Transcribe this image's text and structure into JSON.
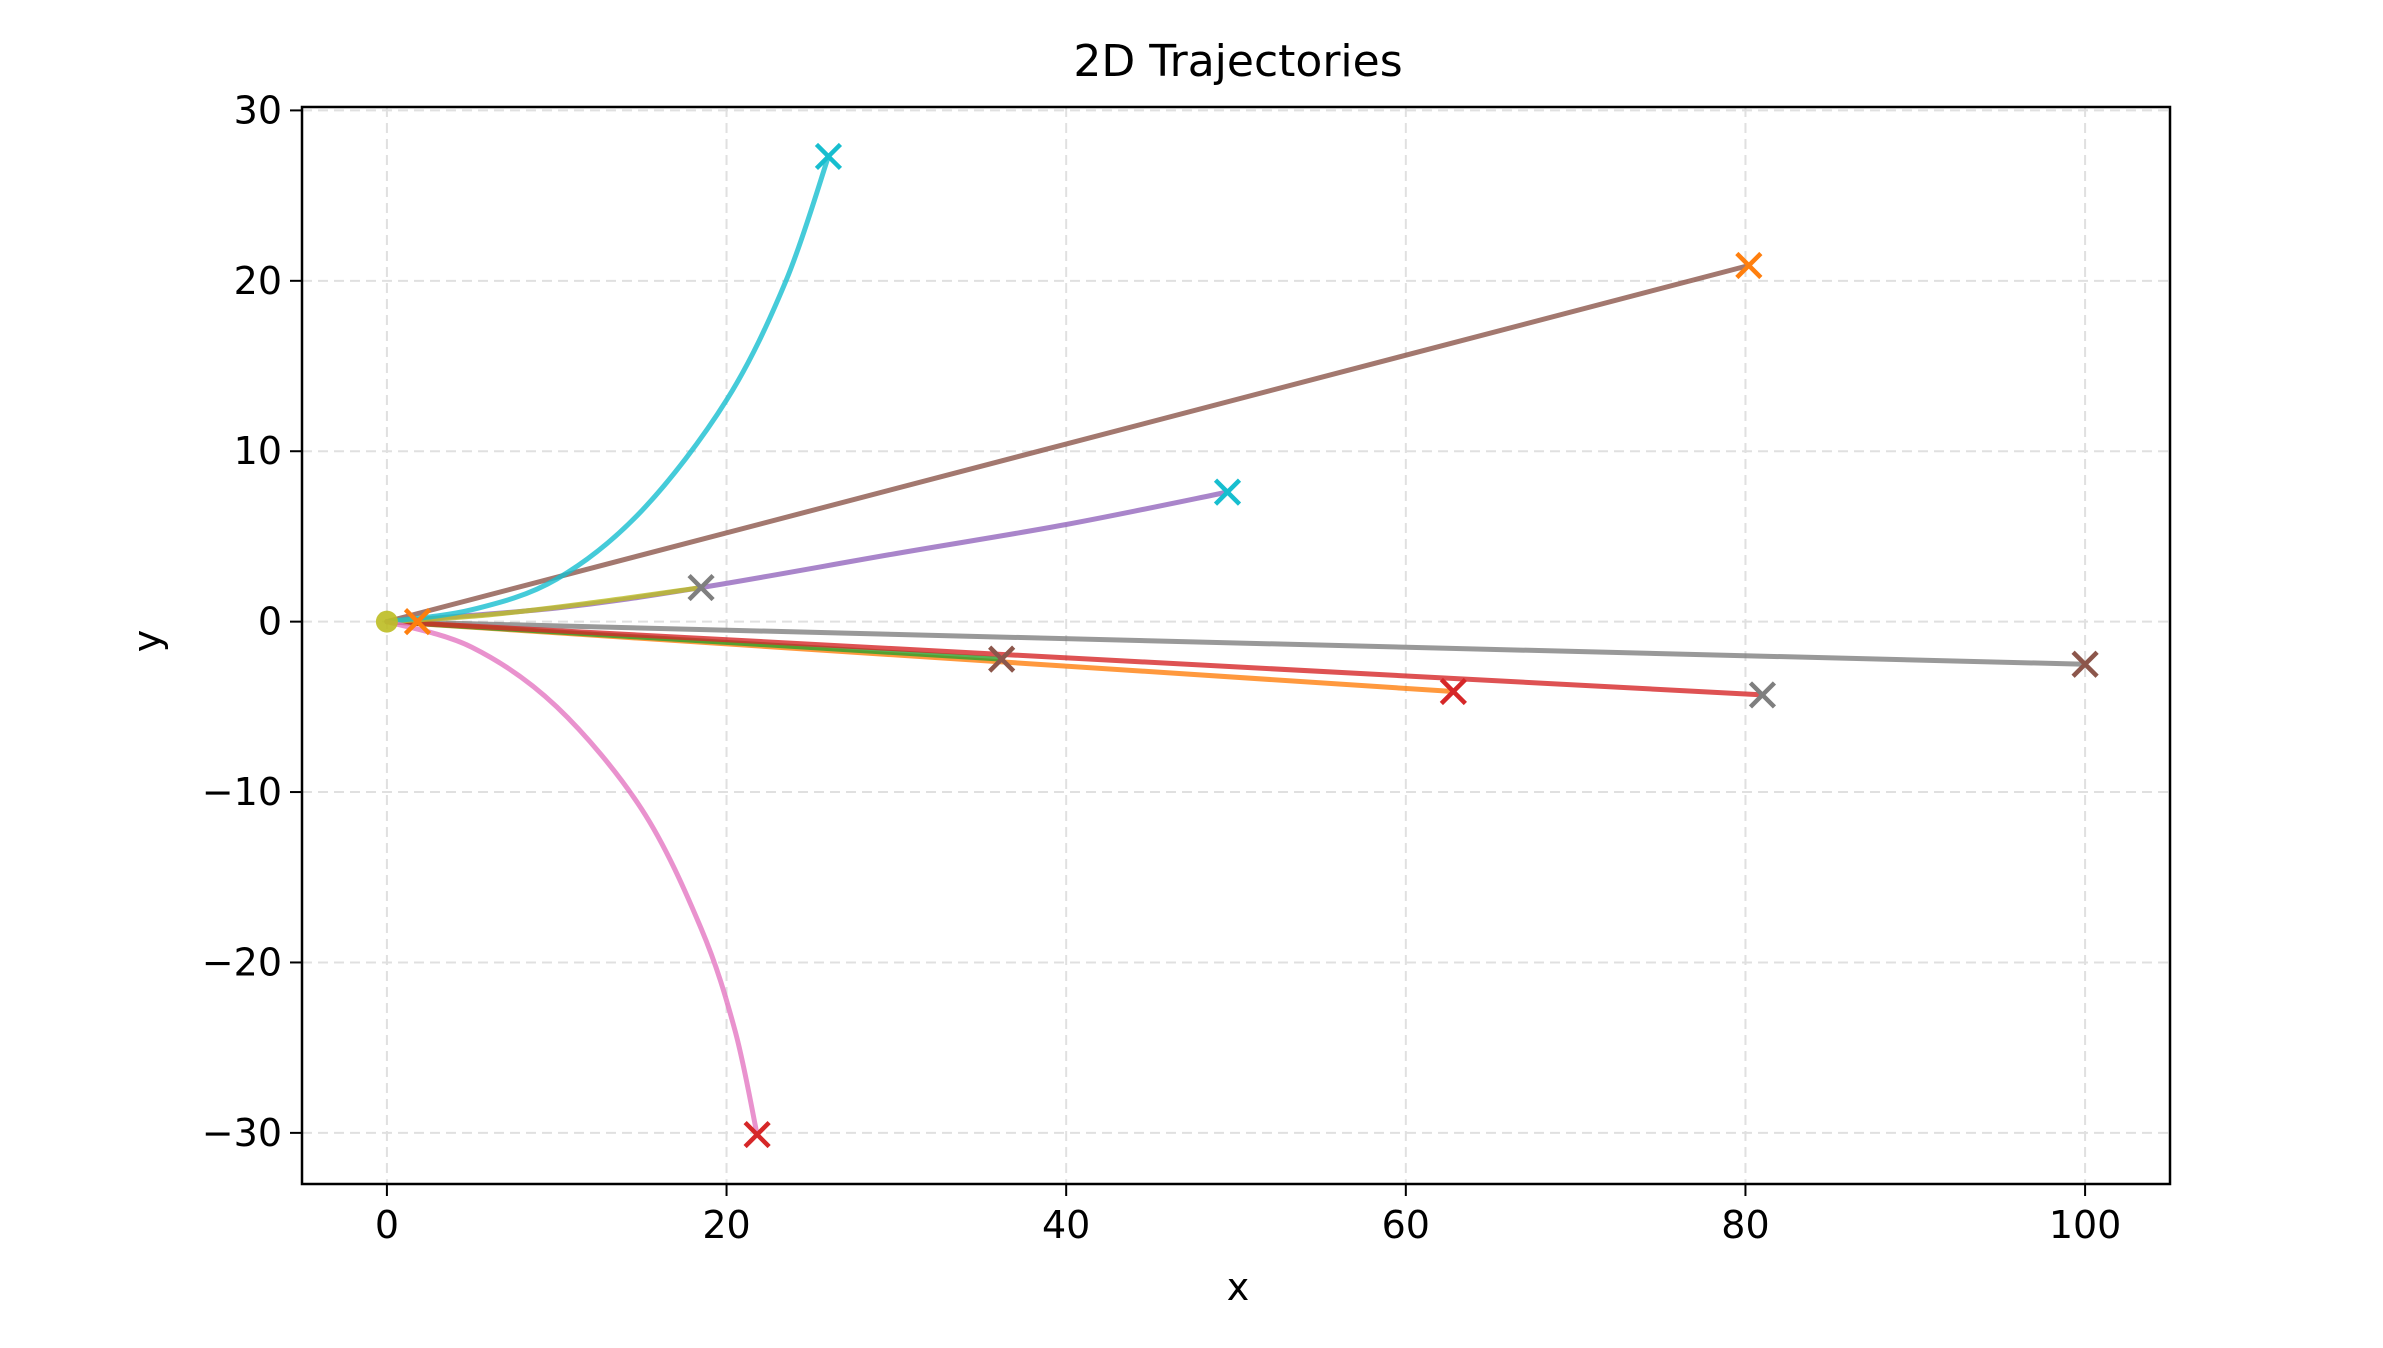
{
  "chart_data": {
    "type": "line",
    "title": "2D Trajectories",
    "xlabel": "x",
    "ylabel": "y",
    "xlim": [
      -5,
      105
    ],
    "ylim": [
      -33,
      30.2
    ],
    "xticks": [
      {
        "value": 0,
        "label": "0"
      },
      {
        "value": 20,
        "label": "20"
      },
      {
        "value": 40,
        "label": "40"
      },
      {
        "value": 60,
        "label": "60"
      },
      {
        "value": 80,
        "label": "80"
      },
      {
        "value": 100,
        "label": "100"
      }
    ],
    "yticks": [
      {
        "value": 30,
        "label": "30"
      },
      {
        "value": 20,
        "label": "20"
      },
      {
        "value": 10,
        "label": "10"
      },
      {
        "value": 0,
        "label": "0"
      },
      {
        "value": -10,
        "label": "−10"
      },
      {
        "value": -20,
        "label": "−20"
      },
      {
        "value": -30,
        "label": "−30"
      }
    ],
    "grid": true,
    "start_point": {
      "x": 0,
      "y": 0,
      "color": "#bcbd22"
    },
    "series": [
      {
        "color": "#1f77b4",
        "line_color": "#7f7f7f",
        "points": [
          [
            0,
            0
          ],
          [
            100,
            -2.5
          ]
        ],
        "end_color": "#8c564b"
      },
      {
        "color": "#ff7f0e",
        "line_color": "#ff7f0e",
        "points": [
          [
            0,
            0
          ],
          [
            62.8,
            -4.1
          ]
        ],
        "end_color": "#d62728"
      },
      {
        "color": "#2ca02c",
        "line_color": "#2ca02c",
        "points": [
          [
            0,
            0
          ],
          [
            36.2,
            -2.2
          ]
        ],
        "end_color": "#8c564b"
      },
      {
        "color": "#d62728",
        "line_color": "#d62728",
        "points": [
          [
            0,
            0
          ],
          [
            81,
            -4.3
          ]
        ],
        "end_color": "#7f7f7f"
      },
      {
        "color": "#8c564b",
        "line_color": "#8c564b",
        "points": [
          [
            0,
            0
          ],
          [
            80.2,
            20.9
          ]
        ],
        "end_color": "#ff7f0e"
      },
      {
        "color": "#9467bd",
        "line_color": "#9467bd",
        "points": [
          [
            0,
            0
          ],
          [
            10,
            0.8
          ],
          [
            18.5,
            2
          ],
          [
            30,
            4
          ],
          [
            40,
            5.7
          ],
          [
            49.5,
            7.6
          ]
        ],
        "end_color": "#17becf"
      },
      {
        "color": "#bcbd22",
        "line_color": "#bcbd22",
        "points": [
          [
            0,
            0
          ],
          [
            6,
            0.4
          ],
          [
            12,
            1.1
          ],
          [
            18.5,
            2
          ]
        ],
        "end_color": "#7f7f7f"
      },
      {
        "color": "#17becf",
        "line_color": "#17becf",
        "points": [
          [
            0,
            0
          ],
          [
            5,
            0.7
          ],
          [
            10,
            2.5
          ],
          [
            15,
            6.5
          ],
          [
            20,
            13
          ],
          [
            23.5,
            20
          ],
          [
            26,
            27.3
          ]
        ],
        "end_color": "#17becf"
      },
      {
        "color": "#e377c2",
        "line_color": "#e377c2",
        "points": [
          [
            0,
            0
          ],
          [
            5,
            -1.5
          ],
          [
            10,
            -5
          ],
          [
            15,
            -11
          ],
          [
            18.5,
            -18
          ],
          [
            20.5,
            -24
          ],
          [
            21.8,
            -30.1
          ]
        ],
        "end_color": "#d62728"
      }
    ],
    "extra_end_markers": [
      {
        "x": 1.8,
        "y": 0,
        "color": "#ff7f0e"
      }
    ]
  }
}
